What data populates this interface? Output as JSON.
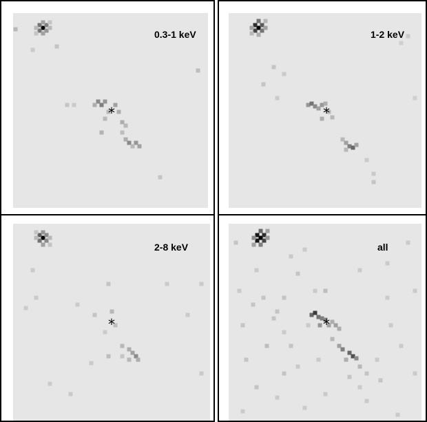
{
  "panels": [
    {
      "label": "0.3-1 keV",
      "marker": "*",
      "bright_source": [
        [
          60,
          38,
          1
        ],
        [
          55,
          34,
          0.5
        ],
        [
          65,
          34,
          0.45
        ],
        [
          55,
          42,
          0.5
        ],
        [
          65,
          42,
          0.35
        ],
        [
          50,
          38,
          0.2
        ],
        [
          70,
          38,
          0.2
        ],
        [
          60,
          30,
          0.3
        ],
        [
          60,
          46,
          0.3
        ],
        [
          70,
          30,
          0.15
        ],
        [
          50,
          46,
          0.15
        ]
      ],
      "pixels": [
        [
          20,
          40,
          0.2
        ],
        [
          45,
          70,
          0.12
        ],
        [
          80,
          65,
          0.15
        ],
        [
          285,
          100,
          0.18
        ],
        [
          95,
          150,
          0.15
        ],
        [
          105,
          150,
          0.12
        ],
        [
          140,
          145,
          0.4
        ],
        [
          145,
          150,
          0.45
        ],
        [
          150,
          145,
          0.35
        ],
        [
          135,
          150,
          0.25
        ],
        [
          165,
          150,
          0.3
        ],
        [
          170,
          160,
          0.25
        ],
        [
          155,
          160,
          0.2
        ],
        [
          150,
          170,
          0.2
        ],
        [
          175,
          175,
          0.25
        ],
        [
          180,
          180,
          0.2
        ],
        [
          145,
          190,
          0.22
        ],
        [
          175,
          190,
          0.18
        ],
        [
          180,
          200,
          0.25
        ],
        [
          185,
          205,
          0.4
        ],
        [
          195,
          205,
          0.35
        ],
        [
          200,
          210,
          0.3
        ],
        [
          190,
          210,
          0.2
        ],
        [
          230,
          255,
          0.15
        ]
      ]
    },
    {
      "label": "1-2 keV",
      "marker": "*",
      "bright_source": [
        [
          373,
          38,
          1
        ],
        [
          368,
          34,
          0.8
        ],
        [
          378,
          34,
          0.6
        ],
        [
          368,
          42,
          0.7
        ],
        [
          378,
          42,
          0.5
        ],
        [
          363,
          38,
          0.3
        ],
        [
          383,
          38,
          0.3
        ],
        [
          373,
          28,
          0.5
        ],
        [
          373,
          48,
          0.25
        ],
        [
          383,
          28,
          0.2
        ],
        [
          363,
          46,
          0.2
        ]
      ],
      "pixels": [
        [
          395,
          95,
          0.15
        ],
        [
          410,
          105,
          0.12
        ],
        [
          380,
          120,
          0.15
        ],
        [
          400,
          140,
          0.12
        ],
        [
          445,
          150,
          0.35
        ],
        [
          450,
          148,
          0.5
        ],
        [
          455,
          152,
          0.4
        ],
        [
          460,
          155,
          0.3
        ],
        [
          465,
          150,
          0.35
        ],
        [
          470,
          148,
          0.25
        ],
        [
          475,
          160,
          0.2
        ],
        [
          465,
          170,
          0.25
        ],
        [
          480,
          168,
          0.2
        ],
        [
          495,
          200,
          0.2
        ],
        [
          500,
          205,
          0.3
        ],
        [
          505,
          210,
          0.45
        ],
        [
          510,
          212,
          0.55
        ],
        [
          515,
          208,
          0.3
        ],
        [
          500,
          215,
          0.2
        ],
        [
          530,
          230,
          0.12
        ],
        [
          540,
          250,
          0.12
        ],
        [
          540,
          262,
          0.15
        ],
        [
          590,
          50,
          0.12
        ],
        [
          580,
          60,
          0.1
        ],
        [
          600,
          140,
          0.1
        ]
      ]
    },
    {
      "label": "2-8 keV",
      "marker": "*",
      "bright_source": [
        [
          60,
          343,
          1
        ],
        [
          55,
          339,
          0.6
        ],
        [
          65,
          339,
          0.4
        ],
        [
          55,
          347,
          0.5
        ],
        [
          65,
          347,
          0.4
        ],
        [
          50,
          343,
          0.2
        ],
        [
          70,
          343,
          0.2
        ],
        [
          60,
          335,
          0.35
        ],
        [
          60,
          353,
          0.3
        ],
        [
          70,
          353,
          0.15
        ],
        [
          50,
          335,
          0.15
        ]
      ],
      "pixels": [
        [
          35,
          445,
          0.12
        ],
        [
          45,
          390,
          0.12
        ],
        [
          50,
          430,
          0.12
        ],
        [
          110,
          440,
          0.12
        ],
        [
          135,
          455,
          0.15
        ],
        [
          155,
          410,
          0.15
        ],
        [
          160,
          450,
          0.2
        ],
        [
          165,
          470,
          0.18
        ],
        [
          150,
          480,
          0.12
        ],
        [
          175,
          500,
          0.2
        ],
        [
          185,
          505,
          0.25
        ],
        [
          190,
          510,
          0.3
        ],
        [
          195,
          515,
          0.4
        ],
        [
          198,
          520,
          0.25
        ],
        [
          185,
          520,
          0.2
        ],
        [
          175,
          515,
          0.15
        ],
        [
          155,
          515,
          0.18
        ],
        [
          130,
          525,
          0.12
        ],
        [
          240,
          410,
          0.12
        ],
        [
          290,
          410,
          0.12
        ],
        [
          270,
          455,
          0.12
        ],
        [
          290,
          540,
          0.12
        ],
        [
          70,
          555,
          0.12
        ],
        [
          100,
          570,
          0.12
        ]
      ]
    },
    {
      "label": "all",
      "marker": "*",
      "bright_source": [
        [
          376,
          343,
          1
        ],
        [
          371,
          339,
          0.9
        ],
        [
          381,
          339,
          0.8
        ],
        [
          371,
          347,
          0.9
        ],
        [
          381,
          347,
          0.7
        ],
        [
          366,
          343,
          0.4
        ],
        [
          386,
          343,
          0.35
        ],
        [
          376,
          333,
          0.55
        ],
        [
          376,
          353,
          0.45
        ],
        [
          386,
          333,
          0.3
        ],
        [
          366,
          353,
          0.3
        ]
      ],
      "pixels": [
        [
          340,
          350,
          0.15
        ],
        [
          345,
          420,
          0.12
        ],
        [
          350,
          470,
          0.15
        ],
        [
          355,
          520,
          0.15
        ],
        [
          365,
          440,
          0.15
        ],
        [
          370,
          390,
          0.12
        ],
        [
          380,
          430,
          0.15
        ],
        [
          385,
          500,
          0.18
        ],
        [
          395,
          460,
          0.15
        ],
        [
          400,
          450,
          0.15
        ],
        [
          410,
          430,
          0.15
        ],
        [
          410,
          480,
          0.12
        ],
        [
          420,
          500,
          0.15
        ],
        [
          430,
          395,
          0.15
        ],
        [
          440,
          360,
          0.12
        ],
        [
          445,
          470,
          0.12
        ],
        [
          450,
          455,
          0.55
        ],
        [
          455,
          452,
          0.75
        ],
        [
          460,
          458,
          0.5
        ],
        [
          465,
          460,
          0.45
        ],
        [
          470,
          462,
          0.4
        ],
        [
          462,
          470,
          0.35
        ],
        [
          475,
          470,
          0.3
        ],
        [
          480,
          465,
          0.25
        ],
        [
          485,
          470,
          0.3
        ],
        [
          490,
          475,
          0.25
        ],
        [
          480,
          490,
          0.2
        ],
        [
          490,
          500,
          0.3
        ],
        [
          495,
          505,
          0.45
        ],
        [
          505,
          510,
          0.55
        ],
        [
          510,
          515,
          0.65
        ],
        [
          515,
          518,
          0.4
        ],
        [
          500,
          520,
          0.25
        ],
        [
          520,
          530,
          0.2
        ],
        [
          505,
          545,
          0.15
        ],
        [
          520,
          560,
          0.12
        ],
        [
          530,
          540,
          0.15
        ],
        [
          545,
          520,
          0.12
        ],
        [
          550,
          550,
          0.15
        ],
        [
          560,
          430,
          0.12
        ],
        [
          565,
          470,
          0.12
        ],
        [
          575,
          600,
          0.12
        ],
        [
          580,
          500,
          0.12
        ],
        [
          590,
          350,
          0.12
        ],
        [
          600,
          420,
          0.12
        ],
        [
          470,
          420,
          0.18
        ],
        [
          470,
          570,
          0.12
        ],
        [
          440,
          590,
          0.12
        ],
        [
          400,
          575,
          0.12
        ],
        [
          370,
          560,
          0.15
        ],
        [
          350,
          595,
          0.12
        ],
        [
          420,
          370,
          0.12
        ],
        [
          520,
          390,
          0.12
        ],
        [
          560,
          380,
          0.12
        ],
        [
          430,
          530,
          0.12
        ],
        [
          460,
          520,
          0.12
        ],
        [
          530,
          580,
          0.12
        ],
        [
          455,
          420,
          0.12
        ],
        [
          410,
          540,
          0.15
        ],
        [
          600,
          540,
          0.12
        ]
      ]
    }
  ]
}
